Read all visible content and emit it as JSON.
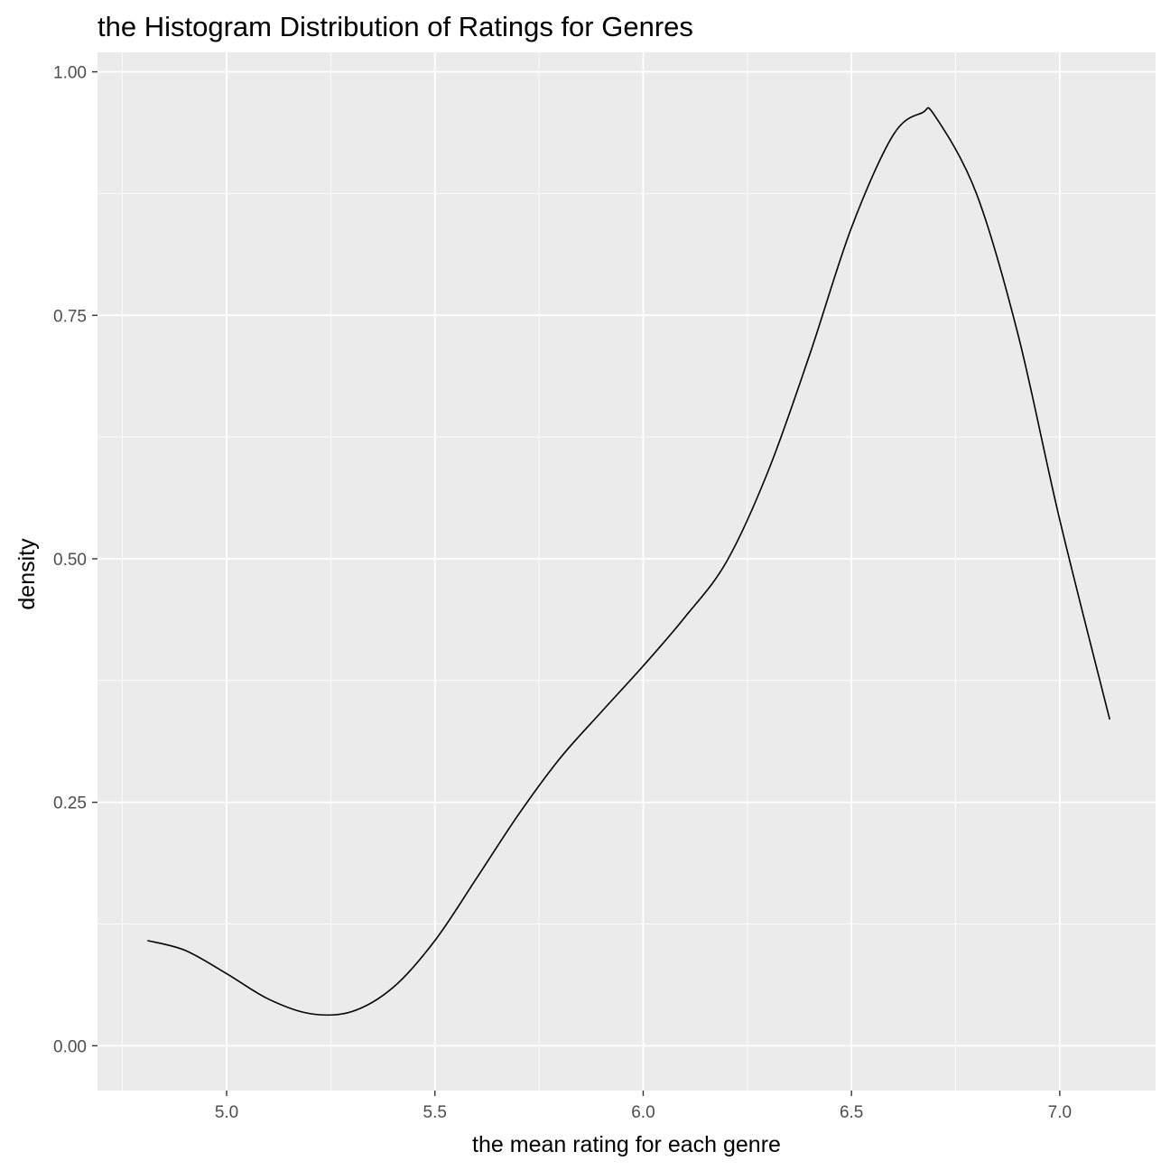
{
  "chart_data": {
    "type": "line",
    "title": "the Histogram Distribution of Ratings for Genres",
    "xlabel": "the mean rating for each genre",
    "ylabel": "density",
    "xlim": [
      4.69,
      7.23
    ],
    "ylim": [
      -0.046,
      1.02
    ],
    "x_ticks": [
      5.0,
      5.5,
      6.0,
      6.5,
      7.0
    ],
    "x_tick_labels": [
      "5.0",
      "5.5",
      "6.0",
      "6.5",
      "7.0"
    ],
    "y_ticks": [
      0.0,
      0.25,
      0.5,
      0.75,
      1.0
    ],
    "y_tick_labels": [
      "0.00",
      "0.25",
      "0.50",
      "0.75",
      "1.00"
    ],
    "grid": true,
    "colors": {
      "panel": "#ebebeb",
      "grid": "#ffffff",
      "line": "#000000",
      "tick": "#4d4d4d"
    },
    "series": [
      {
        "x": [
          4.81,
          4.9,
          5.0,
          5.1,
          5.2,
          5.3,
          5.4,
          5.5,
          5.6,
          5.7,
          5.8,
          5.9,
          6.0,
          6.1,
          6.2,
          6.3,
          6.4,
          6.5,
          6.6,
          6.67,
          6.7,
          6.8,
          6.9,
          7.0,
          7.12
        ],
        "y": [
          0.108,
          0.098,
          0.074,
          0.048,
          0.033,
          0.035,
          0.06,
          0.108,
          0.172,
          0.237,
          0.295,
          0.343,
          0.39,
          0.44,
          0.497,
          0.59,
          0.71,
          0.84,
          0.935,
          0.958,
          0.955,
          0.875,
          0.73,
          0.54,
          0.335
        ]
      }
    ]
  }
}
